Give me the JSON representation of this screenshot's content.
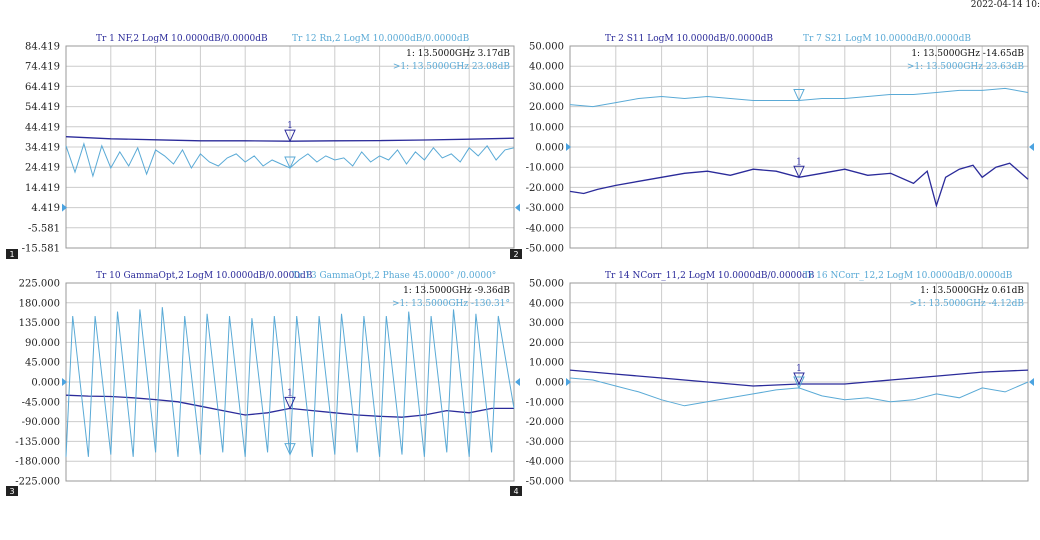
{
  "timestamp": "2022-04-14 10:",
  "colors": {
    "dark": "#2b2b9a",
    "light": "#5aaad6",
    "grid": "#cccccc",
    "ref": "#4ba3e0"
  },
  "chart_data": [
    {
      "type": "line",
      "channel": "1",
      "x_range": [
        0,
        1
      ],
      "ylim": [
        -15.581,
        84.419
      ],
      "yticks": [
        "84.419",
        "74.419",
        "64.419",
        "54.419",
        "44.419",
        "34.419",
        "24.419",
        "14.419",
        "4.419",
        "-5.581",
        "-15.581"
      ],
      "traces": [
        {
          "label": "Tr 1  NF,2 LogM 10.0000dB/0.0000dB",
          "marker_text": "1:     13.5000GHz  3.17dB"
        },
        {
          "label": "Tr 12 Rn,2 LogM 10.0000dB/0.0000dB",
          "marker_text": ">1:    13.5000GHz  23.08dB"
        }
      ],
      "marker_number": "1",
      "ref_left": 4.419,
      "ref_right": 4.419,
      "series": [
        {
          "x": [
            0,
            0.1,
            0.2,
            0.3,
            0.4,
            0.5,
            0.6,
            0.7,
            0.8,
            0.9,
            1.0
          ],
          "values": [
            39.5,
            38.5,
            38.0,
            37.5,
            37.5,
            37.3,
            37.5,
            37.6,
            37.9,
            38.3,
            38.8
          ]
        },
        {
          "x": [
            0,
            0.02,
            0.04,
            0.06,
            0.08,
            0.1,
            0.12,
            0.14,
            0.16,
            0.18,
            0.2,
            0.22,
            0.24,
            0.26,
            0.28,
            0.3,
            0.32,
            0.34,
            0.36,
            0.38,
            0.4,
            0.42,
            0.44,
            0.46,
            0.48,
            0.5,
            0.52,
            0.54,
            0.56,
            0.58,
            0.6,
            0.62,
            0.64,
            0.66,
            0.68,
            0.7,
            0.72,
            0.74,
            0.76,
            0.78,
            0.8,
            0.82,
            0.84,
            0.86,
            0.88,
            0.9,
            0.92,
            0.94,
            0.96,
            0.98,
            1.0
          ],
          "values": [
            35,
            22,
            36,
            20,
            35,
            24,
            32,
            25,
            34,
            21,
            33,
            30,
            26,
            33,
            24,
            31,
            27,
            25,
            29,
            31,
            27,
            30,
            25,
            28,
            26,
            24,
            28,
            31,
            27,
            30,
            28,
            29,
            25,
            32,
            27,
            30,
            28,
            33,
            26,
            32,
            28,
            34,
            29,
            31,
            27,
            34,
            30,
            35,
            28,
            33,
            34
          ]
        }
      ]
    },
    {
      "type": "line",
      "channel": "2",
      "x_range": [
        0,
        1
      ],
      "ylim": [
        -50,
        50
      ],
      "yticks": [
        "50.000",
        "40.000",
        "30.000",
        "20.000",
        "10.000",
        "0.000",
        "-10.000",
        "-20.000",
        "-30.000",
        "-40.000",
        "-50.000"
      ],
      "traces": [
        {
          "label": "Tr 2  S11 LogM 10.0000dB/0.0000dB",
          "marker_text": "1:     13.5000GHz -14.65dB"
        },
        {
          "label": "Tr 7  S21 LogM 10.0000dB/0.0000dB",
          "marker_text": ">1:    13.5000GHz  23.63dB"
        }
      ],
      "marker_number": "1",
      "ref_left": 0,
      "ref_right": 0,
      "series": [
        {
          "x": [
            0,
            0.03,
            0.06,
            0.1,
            0.15,
            0.2,
            0.25,
            0.3,
            0.35,
            0.4,
            0.45,
            0.5,
            0.55,
            0.6,
            0.65,
            0.7,
            0.75,
            0.78,
            0.8,
            0.82,
            0.85,
            0.88,
            0.9,
            0.93,
            0.96,
            1.0
          ],
          "values": [
            -22,
            -23,
            -21,
            -19,
            -17,
            -15,
            -13,
            -12,
            -14,
            -11,
            -12,
            -15,
            -13,
            -11,
            -14,
            -13,
            -18,
            -12,
            -29,
            -15,
            -11,
            -9,
            -15,
            -10,
            -8,
            -16
          ]
        },
        {
          "x": [
            0,
            0.05,
            0.1,
            0.15,
            0.2,
            0.25,
            0.3,
            0.35,
            0.4,
            0.45,
            0.5,
            0.55,
            0.6,
            0.65,
            0.7,
            0.75,
            0.8,
            0.85,
            0.9,
            0.95,
            1.0
          ],
          "values": [
            21,
            20,
            22,
            24,
            25,
            24,
            25,
            24,
            23,
            23,
            23,
            24,
            24,
            25,
            26,
            26,
            27,
            28,
            28,
            29,
            27
          ]
        }
      ]
    },
    {
      "type": "line",
      "channel": "3",
      "x_range": [
        0,
        1
      ],
      "ylim": [
        -225,
        225
      ],
      "yticks": [
        "225.000",
        "180.000",
        "135.000",
        "90.000",
        "45.000",
        "0.000",
        "-45.000",
        "-90.000",
        "-135.000",
        "-180.000",
        "-225.000"
      ],
      "traces": [
        {
          "label": "Tr 10 GammaOpt,2 LogM 10.0000dB/0.0000dB",
          "marker_text": "1:     13.5000GHz  -9.36dB"
        },
        {
          "label": "Tr 13 GammaOpt,2 Phase 45.0000° /0.0000°",
          "marker_text": ">1:    13.5000GHz  -130.31°"
        }
      ],
      "marker_number": "1",
      "ref_left": 0,
      "ref_right": 0,
      "series": [
        {
          "x": [
            0,
            0.05,
            0.1,
            0.15,
            0.2,
            0.25,
            0.3,
            0.35,
            0.4,
            0.45,
            0.5,
            0.55,
            0.6,
            0.65,
            0.7,
            0.75,
            0.8,
            0.85,
            0.9,
            0.95,
            1.0
          ],
          "values": [
            -30,
            -32,
            -33,
            -36,
            -40,
            -45,
            -55,
            -65,
            -75,
            -70,
            -60,
            -65,
            -70,
            -75,
            -78,
            -80,
            -75,
            -65,
            -70,
            -60,
            -60
          ]
        },
        {
          "x": [
            0,
            0.015,
            0.05,
            0.065,
            0.1,
            0.115,
            0.15,
            0.165,
            0.2,
            0.215,
            0.25,
            0.265,
            0.3,
            0.315,
            0.35,
            0.365,
            0.4,
            0.415,
            0.45,
            0.465,
            0.5,
            0.515,
            0.55,
            0.565,
            0.6,
            0.615,
            0.65,
            0.665,
            0.7,
            0.715,
            0.75,
            0.765,
            0.8,
            0.815,
            0.85,
            0.865,
            0.9,
            0.915,
            0.95,
            0.965,
            1.0
          ],
          "values": [
            -170,
            150,
            -170,
            150,
            -165,
            160,
            -170,
            165,
            -160,
            170,
            -170,
            150,
            -165,
            155,
            -160,
            150,
            -170,
            145,
            -160,
            150,
            -165,
            150,
            -170,
            150,
            -165,
            155,
            -160,
            150,
            -170,
            150,
            -165,
            160,
            -170,
            150,
            -160,
            165,
            -170,
            155,
            -160,
            150,
            -60
          ]
        }
      ]
    },
    {
      "type": "line",
      "channel": "4",
      "x_range": [
        0,
        1
      ],
      "ylim": [
        -50,
        50
      ],
      "yticks": [
        "50.000",
        "40.000",
        "30.000",
        "20.000",
        "10.000",
        "0.000",
        "-10.000",
        "-20.000",
        "-30.000",
        "-40.000",
        "-50.000"
      ],
      "traces": [
        {
          "label": "Tr 14 NCorr_11,2 LogM 10.0000dB/0.0000dB",
          "marker_text": "1:     13.5000GHz  0.61dB"
        },
        {
          "label": "Tr 16 NCorr_12,2 LogM 10.0000dB/0.0000dB",
          "marker_text": ">1:    13.5000GHz  -4.12dB"
        }
      ],
      "marker_number": "1",
      "ref_left": 0,
      "ref_right": 0,
      "series": [
        {
          "x": [
            0,
            0.1,
            0.2,
            0.3,
            0.4,
            0.5,
            0.6,
            0.7,
            0.8,
            0.9,
            1.0
          ],
          "values": [
            6,
            4,
            2,
            0,
            -2,
            -1,
            -1,
            1,
            3,
            5,
            6
          ]
        },
        {
          "x": [
            0,
            0.05,
            0.1,
            0.15,
            0.2,
            0.25,
            0.3,
            0.35,
            0.4,
            0.45,
            0.5,
            0.55,
            0.6,
            0.65,
            0.7,
            0.75,
            0.8,
            0.85,
            0.9,
            0.95,
            1.0
          ],
          "values": [
            2,
            1,
            -2,
            -5,
            -9,
            -12,
            -10,
            -8,
            -6,
            -4,
            -3,
            -7,
            -9,
            -8,
            -10,
            -9,
            -6,
            -8,
            -3,
            -5,
            0
          ]
        }
      ]
    }
  ]
}
